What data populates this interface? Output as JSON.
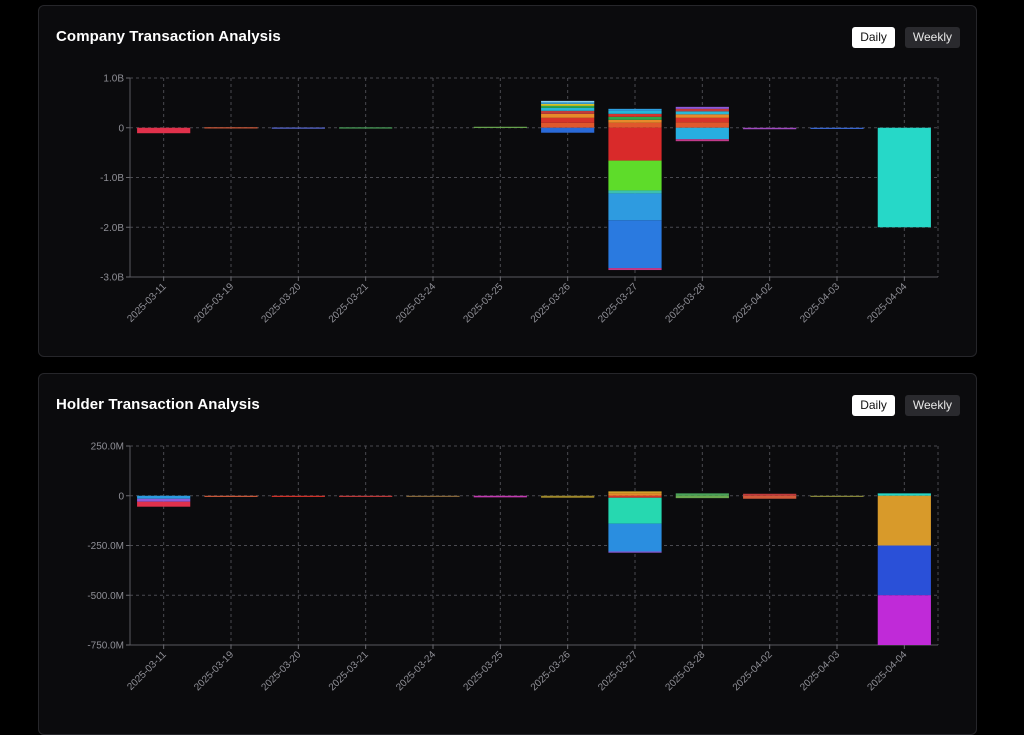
{
  "company": {
    "title": "Company Transaction Analysis",
    "buttons": {
      "daily": "Daily",
      "weekly": "Weekly"
    }
  },
  "holder": {
    "title": "Holder Transaction Analysis",
    "buttons": {
      "daily": "Daily",
      "weekly": "Weekly"
    }
  },
  "chart_data": [
    {
      "type": "bar",
      "stacked": true,
      "title": "Company Transaction Analysis",
      "categories": [
        "2025-03-11",
        "2025-03-19",
        "2025-03-20",
        "2025-03-21",
        "2025-03-24",
        "2025-03-25",
        "2025-03-26",
        "2025-03-27",
        "2025-03-28",
        "2025-04-02",
        "2025-04-03",
        "2025-04-04"
      ],
      "yticks": [
        1000000000,
        0,
        -1000000000,
        -2000000000,
        -3000000000
      ],
      "ytick_labels": [
        "1.0B",
        "0",
        "-1.0B",
        "-2.0B",
        "-3.0B"
      ],
      "ylim": [
        -3000000000,
        1000000000
      ],
      "grid": true,
      "segments": [
        [
          {
            "value": -110000000,
            "color": "#e0314b"
          }
        ],
        [
          {
            "value": 10000000,
            "color": "#d05a3a"
          }
        ],
        [
          {
            "value": 5000000,
            "color": "#5a6bd8"
          }
        ],
        [
          {
            "value": 8000000,
            "color": "#4aa35a"
          }
        ],
        [],
        [
          {
            "value": 20000000,
            "color": "#6aa84f"
          }
        ],
        [
          {
            "value": 100000000,
            "color": "#e0582c"
          },
          {
            "value": 100000000,
            "color": "#d7332a"
          },
          {
            "value": 80000000,
            "color": "#e8892a"
          },
          {
            "value": 60000000,
            "color": "#c23b3b"
          },
          {
            "value": 60000000,
            "color": "#27b8d8"
          },
          {
            "value": 40000000,
            "color": "#2ea84a"
          },
          {
            "value": 40000000,
            "color": "#d4c42a"
          },
          {
            "value": 30000000,
            "color": "#2fa0e0"
          },
          {
            "value": 30000000,
            "color": "#8fd3f0"
          },
          {
            "value": -100000000,
            "color": "#2a6ad8"
          }
        ],
        [
          {
            "value": 100000000,
            "color": "#e0582c"
          },
          {
            "value": 60000000,
            "color": "#e8892a"
          },
          {
            "value": 60000000,
            "color": "#2ea84a"
          },
          {
            "value": 60000000,
            "color": "#d7332a"
          },
          {
            "value": 60000000,
            "color": "#27b8d8"
          },
          {
            "value": 40000000,
            "color": "#2fa0e0"
          },
          {
            "value": -660000000,
            "color": "#d92a2a"
          },
          {
            "value": -600000000,
            "color": "#5edc2a"
          },
          {
            "value": -60000000,
            "color": "#3cc0b0"
          },
          {
            "value": -540000000,
            "color": "#2e9be0"
          },
          {
            "value": -960000000,
            "color": "#2a7ae0"
          },
          {
            "value": -40000000,
            "color": "#c23b8a"
          }
        ],
        [
          {
            "value": 110000000,
            "color": "#e0582c"
          },
          {
            "value": 90000000,
            "color": "#d7332a"
          },
          {
            "value": 70000000,
            "color": "#e8892a"
          },
          {
            "value": 60000000,
            "color": "#27b8d8"
          },
          {
            "value": 50000000,
            "color": "#c23b3b"
          },
          {
            "value": 40000000,
            "color": "#8f5ad8"
          },
          {
            "value": -230000000,
            "color": "#27aee0"
          },
          {
            "value": -40000000,
            "color": "#c23b8a"
          }
        ],
        [
          {
            "value": -30000000,
            "color": "#a04ac0"
          }
        ],
        [
          {
            "value": -10000000,
            "color": "#3a6ad8"
          }
        ],
        [
          {
            "value": -2000000000,
            "color": "#26d8c8"
          }
        ]
      ]
    },
    {
      "type": "bar",
      "stacked": true,
      "title": "Holder Transaction Analysis",
      "categories": [
        "2025-03-11",
        "2025-03-19",
        "2025-03-20",
        "2025-03-21",
        "2025-03-24",
        "2025-03-25",
        "2025-03-26",
        "2025-03-27",
        "2025-03-28",
        "2025-04-02",
        "2025-04-03",
        "2025-04-04"
      ],
      "yticks": [
        250000000,
        0,
        -250000000,
        -500000000,
        -750000000
      ],
      "ytick_labels": [
        "250.0M",
        "0",
        "-250.0M",
        "-500.0M",
        "-750.0M"
      ],
      "ylim": [
        -750000000,
        250000000
      ],
      "grid": true,
      "segments": [
        [
          {
            "value": -15000000,
            "color": "#2a9be0"
          },
          {
            "value": -15000000,
            "color": "#8f5ad8"
          },
          {
            "value": -25000000,
            "color": "#e0314b"
          }
        ],
        [
          {
            "value": -5000000,
            "color": "#d05a3a"
          }
        ],
        [
          {
            "value": -3000000,
            "color": "#d7332a"
          }
        ],
        [
          {
            "value": -4000000,
            "color": "#c23b3b"
          }
        ],
        [
          {
            "value": -3000000,
            "color": "#8a6a3a"
          }
        ],
        [
          {
            "value": -8000000,
            "color": "#c23bb0"
          }
        ],
        [
          {
            "value": -10000000,
            "color": "#a08a2a"
          }
        ],
        [
          {
            "value": 12000000,
            "color": "#e8892a"
          },
          {
            "value": 10000000,
            "color": "#d4a02a"
          },
          {
            "value": -10000000,
            "color": "#d7332a"
          },
          {
            "value": -130000000,
            "color": "#26d8b0"
          },
          {
            "value": -140000000,
            "color": "#2a8ee0"
          },
          {
            "value": -5000000,
            "color": "#8f5ad8"
          }
        ],
        [
          {
            "value": 12000000,
            "color": "#4aa35a"
          },
          {
            "value": -12000000,
            "color": "#6aa84f"
          }
        ],
        [
          {
            "value": 10000000,
            "color": "#c23b3b"
          },
          {
            "value": -15000000,
            "color": "#d05a3a"
          }
        ],
        [
          {
            "value": -5000000,
            "color": "#8a8a3a"
          }
        ],
        [
          {
            "value": 12000000,
            "color": "#26d8c8"
          },
          {
            "value": -250000000,
            "color": "#d89a2a"
          },
          {
            "value": -250000000,
            "color": "#2a50d8"
          },
          {
            "value": -250000000,
            "color": "#c02ad8"
          }
        ]
      ]
    }
  ]
}
